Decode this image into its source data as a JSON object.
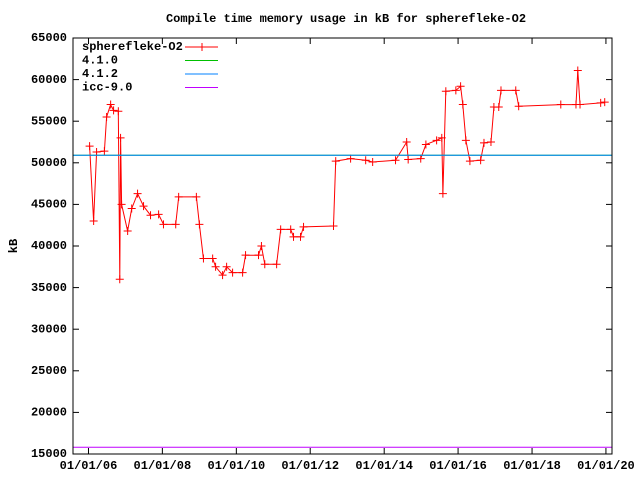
{
  "chart_data": {
    "type": "line",
    "title": "Compile time memory usage in kB for spherefleke-O2",
    "y_label": "kB",
    "xlim": [
      "2005-08-01",
      "2020-03-01"
    ],
    "xticks": [
      {
        "value": "2006-01-01",
        "label": "01/01/06"
      },
      {
        "value": "2008-01-01",
        "label": "01/01/08"
      },
      {
        "value": "2010-01-01",
        "label": "01/01/10"
      },
      {
        "value": "2012-01-01",
        "label": "01/01/12"
      },
      {
        "value": "2014-01-01",
        "label": "01/01/14"
      },
      {
        "value": "2016-01-01",
        "label": "01/01/16"
      },
      {
        "value": "2018-01-01",
        "label": "01/01/18"
      },
      {
        "value": "2020-01-01",
        "label": "01/01/20"
      }
    ],
    "ylim": [
      15000,
      65000
    ],
    "yticks": [
      15000,
      20000,
      25000,
      30000,
      35000,
      40000,
      45000,
      50000,
      55000,
      60000,
      65000
    ],
    "legend": "top-left",
    "series": [
      {
        "name": "spherefleke-O2",
        "color": "#ff0000",
        "markers": true,
        "x": [
          "2006-01-12",
          "2006-02-21",
          "2006-03-22",
          "2006-06-07",
          "2006-06-29",
          "2006-08-08",
          "2006-09-06",
          "2006-10-23",
          "2006-11-06",
          "2006-11-14",
          "2006-11-24",
          "2007-01-23",
          "2007-03-04",
          "2007-05-01",
          "2007-06-29",
          "2007-09-06",
          "2007-11-25",
          "2008-01-12",
          "2008-05-12",
          "2008-06-10",
          "2008-12-02",
          "2009-01-01",
          "2009-02-10",
          "2009-05-12",
          "2009-06-10",
          "2009-08-18",
          "2009-09-27",
          "2009-11-25",
          "2010-03-04",
          "2010-04-02",
          "2010-08-08",
          "2010-09-06",
          "2010-10-09",
          "2011-02-03",
          "2011-03-15",
          "2011-06-22",
          "2011-07-20",
          "2011-09-27",
          "2011-10-27",
          "2012-08-18",
          "2012-09-09",
          "2013-02-03",
          "2013-07-02",
          "2013-09-09",
          "2014-04-23",
          "2014-08-11",
          "2014-08-26",
          "2014-12-28",
          "2015-02-17",
          "2015-06-03",
          "2015-07-24",
          "2015-08-04",
          "2015-09-02",
          "2015-12-10",
          "2016-01-26",
          "2016-02-17",
          "2016-03-18",
          "2016-04-27",
          "2016-08-11",
          "2016-09-13",
          "2016-11-21",
          "2016-12-20",
          "2017-02-06",
          "2017-02-28",
          "2017-07-24",
          "2017-08-22",
          "2018-10-12",
          "2019-03-11",
          "2019-03-29",
          "2019-04-20",
          "2019-11-10",
          "2019-12-20"
        ],
        "values": [
          52000,
          43000,
          51300,
          51400,
          55500,
          57000,
          56300,
          56200,
          36000,
          53000,
          45000,
          41800,
          44500,
          46300,
          44800,
          43700,
          43800,
          42600,
          42600,
          45900,
          45900,
          42600,
          38500,
          38500,
          37500,
          36500,
          37500,
          36800,
          36800,
          38900,
          38900,
          40000,
          37800,
          37800,
          42000,
          42000,
          41100,
          41100,
          42300,
          42400,
          50200,
          50500,
          50300,
          50100,
          50300,
          52500,
          50400,
          50500,
          52200,
          52700,
          53000,
          46300,
          58600,
          58700,
          59200,
          57000,
          52700,
          50200,
          50300,
          52400,
          52500,
          56700,
          56700,
          58700,
          58700,
          56800,
          57000,
          57000,
          61100,
          57000,
          57200,
          57300
        ]
      },
      {
        "name": "4.1.0",
        "color": "#00c000",
        "markers": false,
        "x": [
          "2005-08-01",
          "2020-03-01"
        ],
        "values": [
          50900,
          50900
        ]
      },
      {
        "name": "4.1.2",
        "color": "#0080ff",
        "markers": false,
        "x": [
          "2005-08-01",
          "2020-03-01"
        ],
        "values": [
          50900,
          50900
        ]
      },
      {
        "name": "icc-9.0",
        "color": "#c000ff",
        "markers": false,
        "x": [
          "2005-08-01",
          "2020-03-01"
        ],
        "values": [
          15800,
          15800
        ]
      }
    ]
  }
}
